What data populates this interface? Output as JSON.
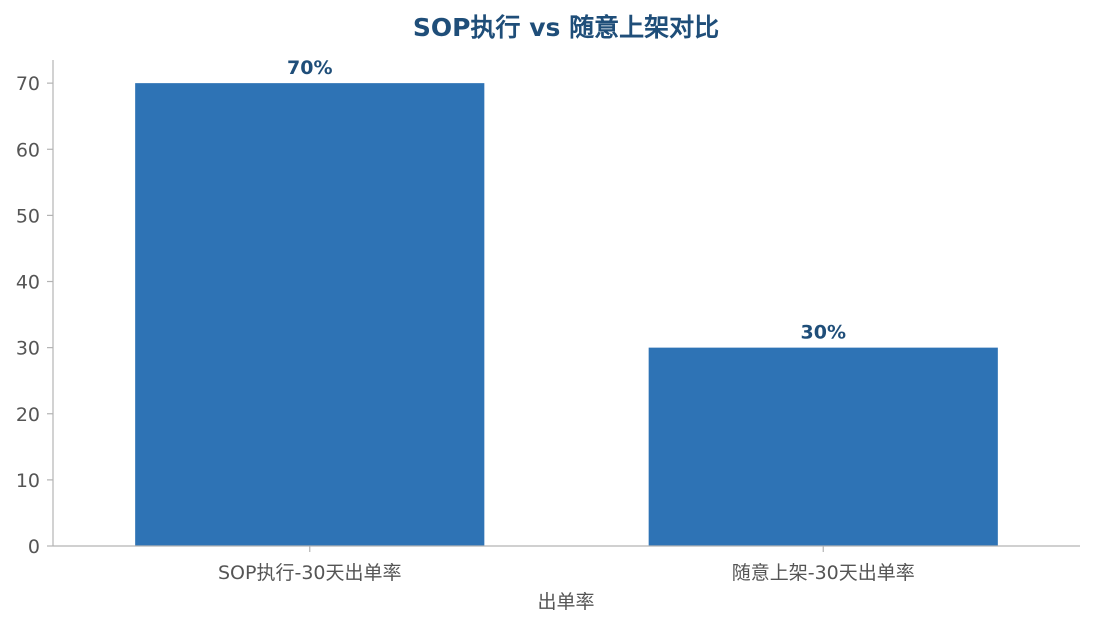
{
  "colors": {
    "bar": "#2e73b5",
    "title": "#1f4e79",
    "value_label": "#1f4e79",
    "axis": "#b3b3b3",
    "tick_text": "#555555"
  },
  "chart_data": {
    "type": "bar",
    "title": "SOP执行 vs 随意上架对比",
    "xlabel": "出单率",
    "ylabel": "",
    "categories": [
      "SOP执行-30天出单率",
      "随意上架-30天出单率"
    ],
    "values": [
      70,
      30
    ],
    "value_labels": [
      "70%",
      "30%"
    ],
    "ylim": [
      0,
      73.5
    ],
    "yticks": [
      0,
      10,
      20,
      30,
      40,
      50,
      60,
      70
    ],
    "grid": false,
    "legend": "none"
  }
}
